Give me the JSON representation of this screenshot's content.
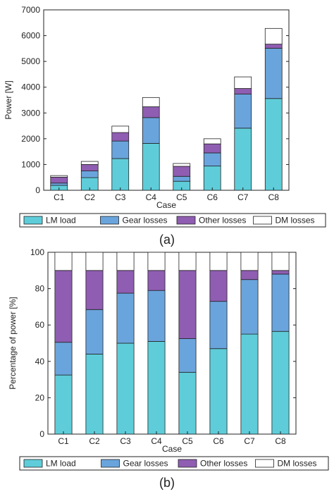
{
  "chart_data": [
    {
      "type": "bar",
      "stacked": true,
      "categories": [
        "C1",
        "C2",
        "C3",
        "C4",
        "C5",
        "C6",
        "C7",
        "C8"
      ],
      "series": [
        {
          "name": "LM load",
          "color": "#5ecdd9",
          "values": [
            190,
            490,
            1230,
            1820,
            350,
            940,
            2410,
            3560
          ]
        },
        {
          "name": "Gear losses",
          "color": "#6aa4dc",
          "values": [
            90,
            260,
            680,
            1000,
            190,
            510,
            1320,
            1950
          ]
        },
        {
          "name": "Other losses",
          "color": "#8f5db2",
          "values": [
            230,
            250,
            330,
            420,
            390,
            350,
            220,
            160
          ]
        },
        {
          "name": "DM losses",
          "color": "#ffffff",
          "values": [
            60,
            120,
            250,
            360,
            110,
            200,
            450,
            610
          ]
        }
      ],
      "xlabel": "Case",
      "ylabel": "Power [W]",
      "ylim": [
        0,
        7000
      ],
      "yticks": [
        0,
        1000,
        2000,
        3000,
        4000,
        5000,
        6000,
        7000
      ],
      "caption": "(a)",
      "legend_position": "bottom"
    },
    {
      "type": "bar",
      "stacked": true,
      "categories": [
        "C1",
        "C2",
        "C3",
        "C4",
        "C5",
        "C6",
        "C7",
        "C8"
      ],
      "series": [
        {
          "name": "LM load",
          "color": "#5ecdd9",
          "values": [
            32.5,
            44,
            50,
            51,
            34,
            47,
            55,
            56.5
          ]
        },
        {
          "name": "Gear losses",
          "color": "#6aa4dc",
          "values": [
            18,
            24.5,
            27.5,
            28,
            18.5,
            26,
            30,
            31.5
          ]
        },
        {
          "name": "Other losses",
          "color": "#8f5db2",
          "values": [
            39.5,
            21.5,
            12.5,
            11,
            37.5,
            17,
            5,
            2
          ]
        },
        {
          "name": "DM losses",
          "color": "#ffffff",
          "values": [
            10,
            10,
            10,
            10,
            10,
            10,
            10,
            10
          ]
        }
      ],
      "xlabel": "Case",
      "ylabel": "Percentage of power [%]",
      "ylim": [
        0,
        100
      ],
      "yticks": [
        0,
        20,
        40,
        60,
        80,
        100
      ],
      "caption": "(b)",
      "legend_position": "bottom"
    }
  ]
}
